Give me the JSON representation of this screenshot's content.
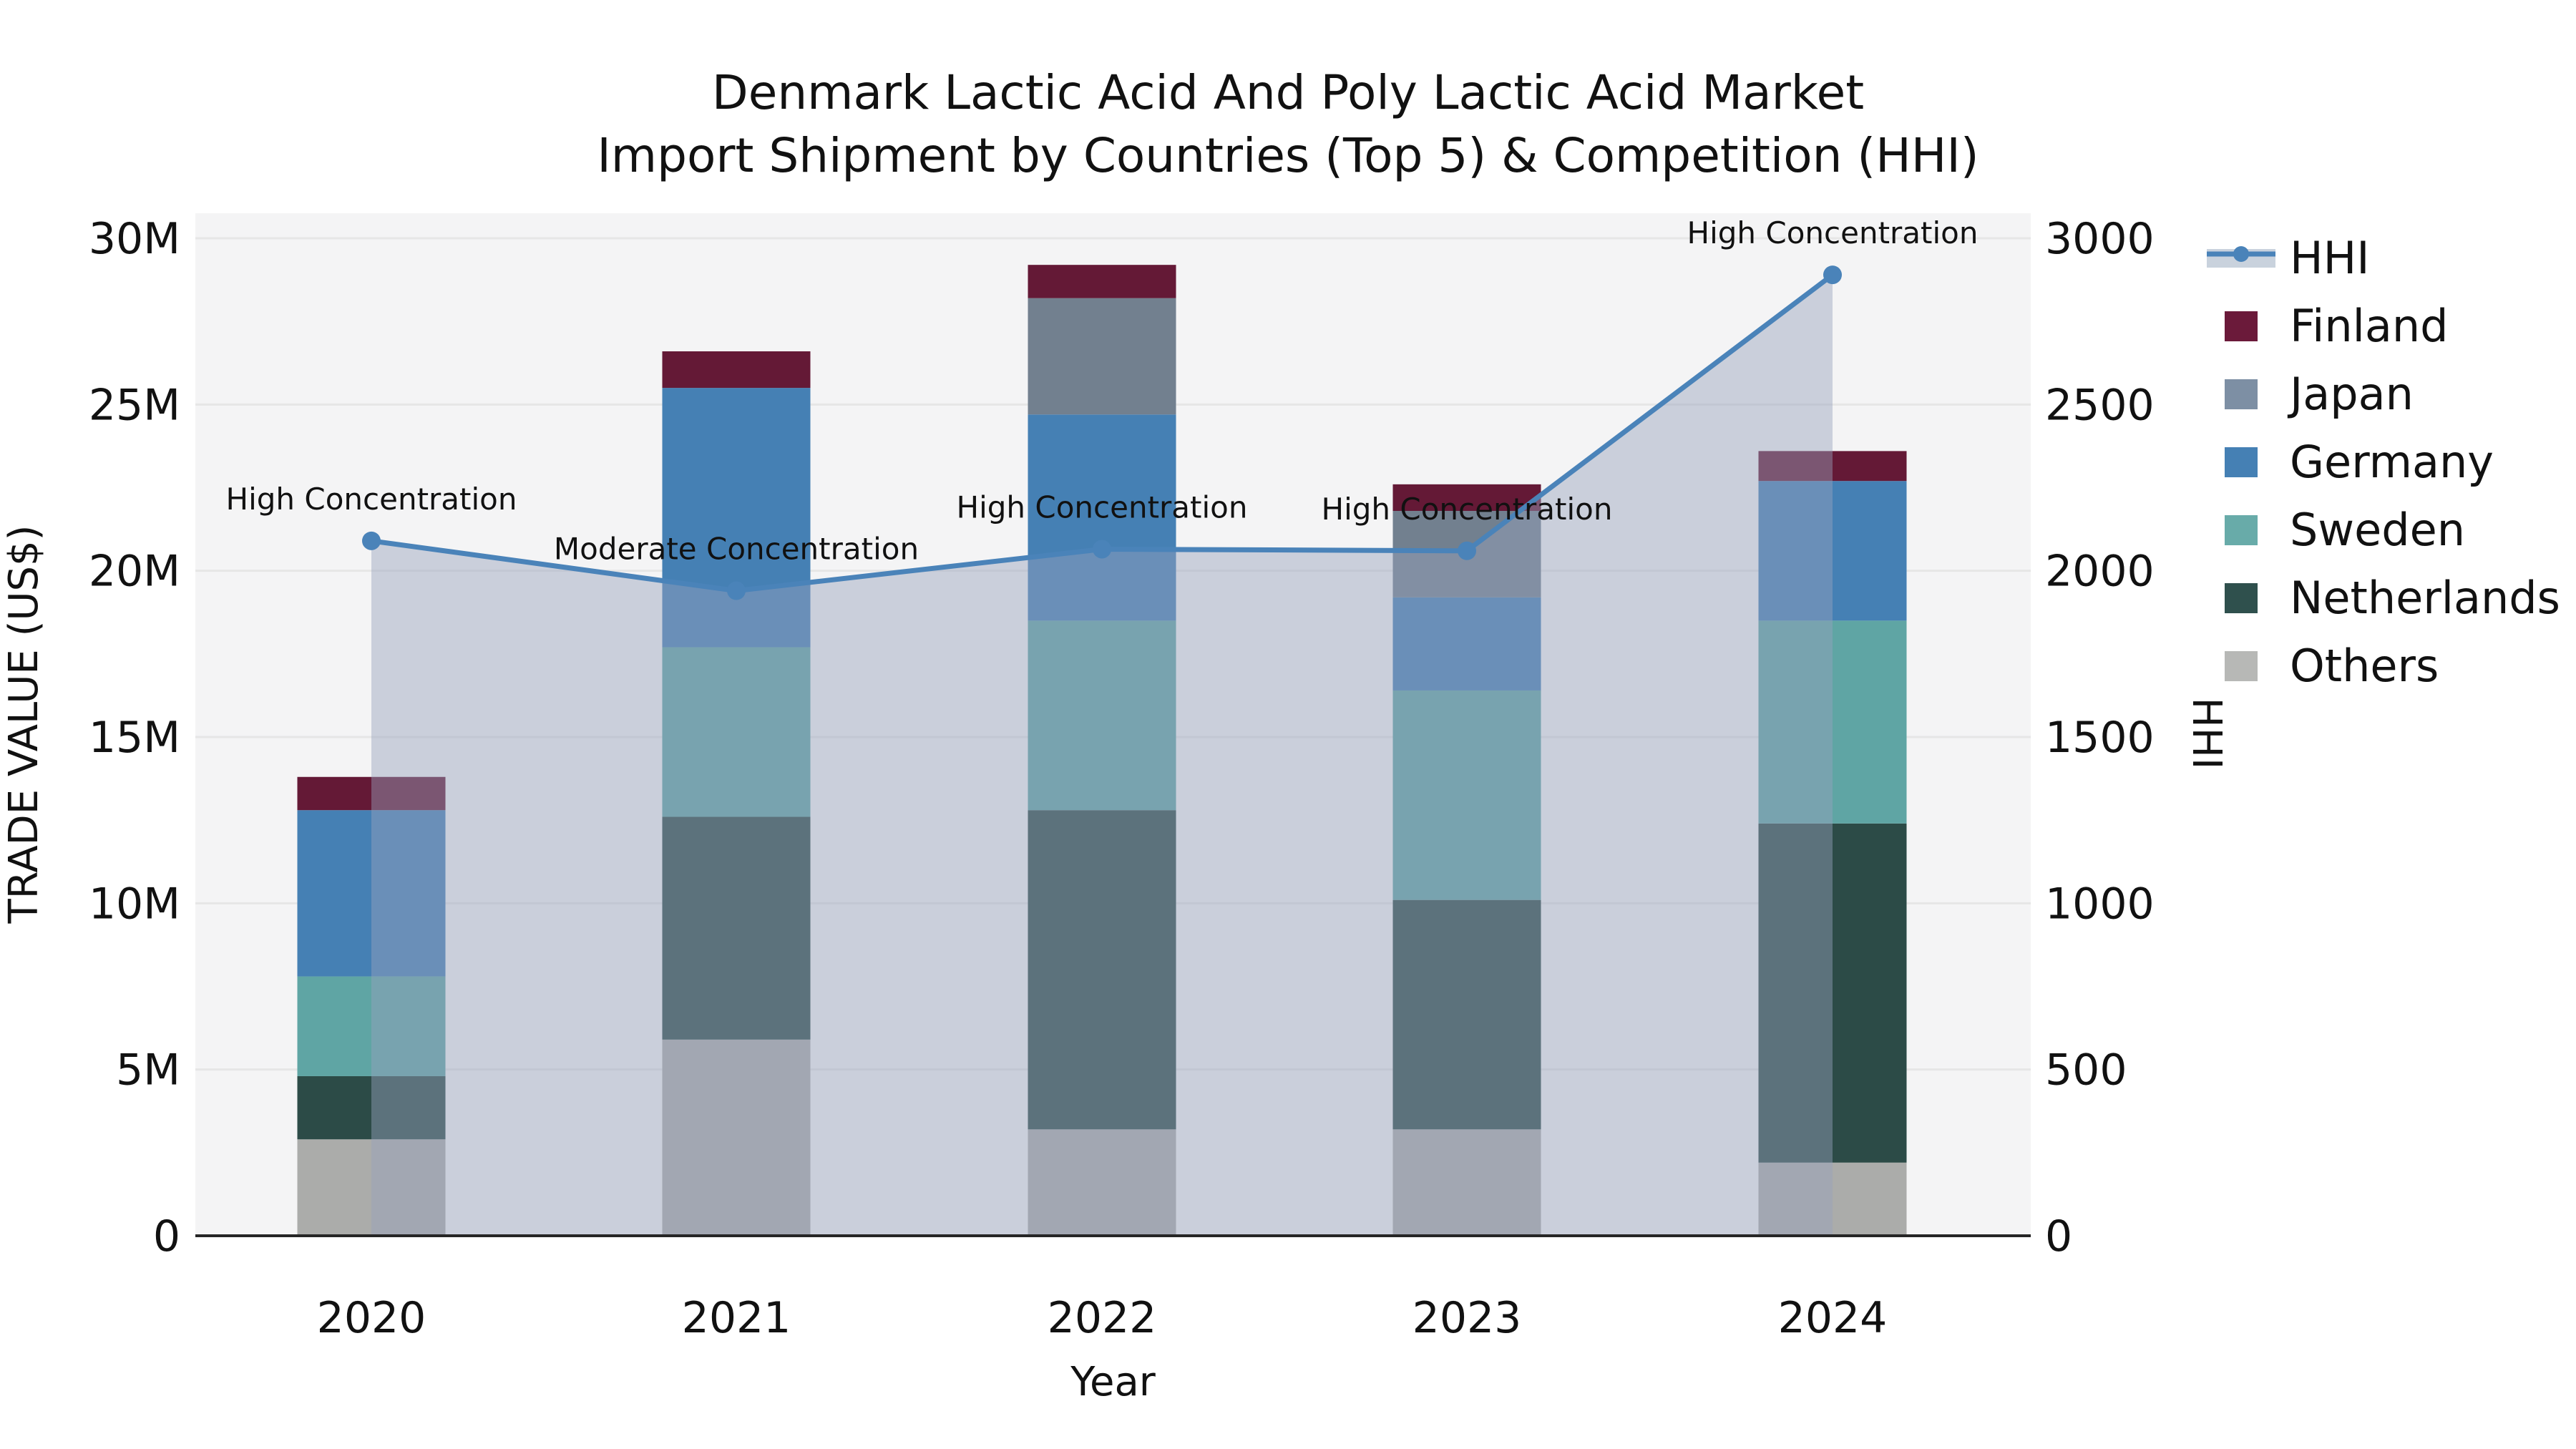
{
  "chart_data": {
    "type": "combo-stacked-bar-line",
    "title_lines": [
      "Denmark Lactic Acid And Poly Lactic Acid Market",
      "Import Shipment by Countries (Top 5) & Competition (HHI)"
    ],
    "categories": [
      "2020",
      "2021",
      "2022",
      "2023",
      "2024"
    ],
    "xlabel": "Year",
    "y_left": {
      "label": "TRADE VALUE (US$)",
      "min": 0,
      "max_m": 30,
      "tick_labels": [
        "0",
        "5M",
        "10M",
        "15M",
        "20M",
        "25M",
        "30M"
      ],
      "tick_values_m": [
        0,
        5,
        10,
        15,
        20,
        25,
        30
      ]
    },
    "y_right": {
      "label": "HHI",
      "min": 0,
      "max": 3000,
      "tick_labels": [
        "0",
        "500",
        "1000",
        "1500",
        "2000",
        "2500",
        "3000"
      ],
      "tick_values": [
        0,
        500,
        1000,
        1500,
        2000,
        2500,
        3000
      ]
    },
    "series": [
      {
        "name": "Others",
        "color": "#abacaa",
        "values_m": [
          2.9,
          5.9,
          3.2,
          3.2,
          2.2
        ]
      },
      {
        "name": "Netherlands",
        "color": "#2c4b47",
        "values_m": [
          1.9,
          6.7,
          9.6,
          6.9,
          10.2
        ]
      },
      {
        "name": "Sweden",
        "color": "#5fa5a4",
        "values_m": [
          3.0,
          5.1,
          5.7,
          6.3,
          6.1
        ]
      },
      {
        "name": "Germany",
        "color": "#4580b4",
        "values_m": [
          5.0,
          7.8,
          6.2,
          2.8,
          4.2
        ]
      },
      {
        "name": "Japan",
        "color": "#72808f",
        "values_m": [
          0,
          0,
          3.5,
          2.6,
          0
        ]
      },
      {
        "name": "Finland",
        "color": "#641936",
        "values_m": [
          1.0,
          1.1,
          1.0,
          0.8,
          0.9
        ]
      }
    ],
    "totals_m": [
      13.8,
      26.6,
      29.2,
      22.6,
      23.6
    ],
    "hhi": {
      "name": "HHI",
      "values": [
        2090,
        1940,
        2065,
        2060,
        2890
      ],
      "line_color": "#4a83b9",
      "area_fill": "rgba(150,162,188,0.45)",
      "legend_band_color": "#c9d2dd"
    },
    "annotations": [
      {
        "year": "2020",
        "text": "High Concentration"
      },
      {
        "year": "2021",
        "text": "Moderate Concentration"
      },
      {
        "year": "2022",
        "text": "High Concentration"
      },
      {
        "year": "2023",
        "text": "High Concentration"
      },
      {
        "year": "2024",
        "text": "High Concentration"
      }
    ],
    "legend": {
      "position": "top-right-outside",
      "items": [
        {
          "label": "HHI",
          "type": "line",
          "color": "#4a83b9"
        },
        {
          "label": "Finland",
          "type": "patch",
          "color": "#6b1a3a"
        },
        {
          "label": "Japan",
          "type": "patch",
          "color": "#7d8fa4"
        },
        {
          "label": "Germany",
          "type": "patch",
          "color": "#4580b4"
        },
        {
          "label": "Sweden",
          "type": "patch",
          "color": "#68aba9"
        },
        {
          "label": "Netherlands",
          "type": "patch",
          "color": "#2f504d"
        },
        {
          "label": "Others",
          "type": "patch",
          "color": "#b7b8b6"
        }
      ]
    },
    "grid": "horizontal-only"
  },
  "colors": {
    "plot_bg": "#f4f4f5",
    "gridline": "#e6e6e6",
    "axis_spine": "#262626",
    "text": "#111111"
  }
}
